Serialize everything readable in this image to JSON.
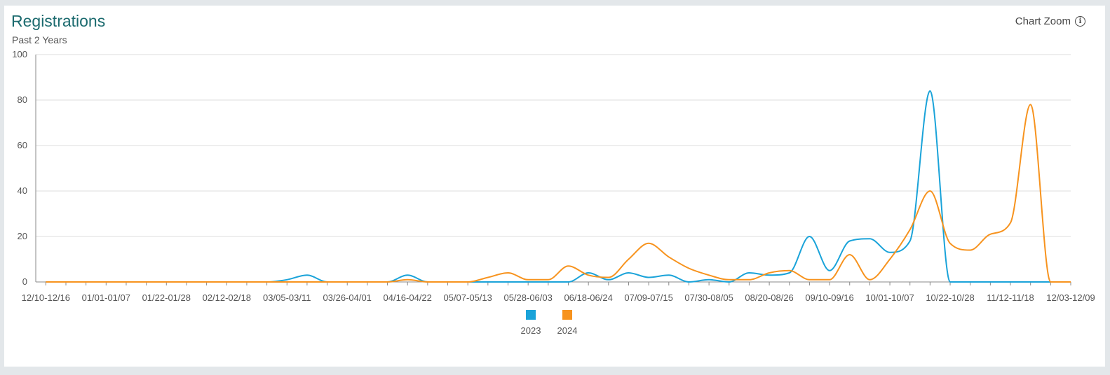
{
  "header": {
    "title": "Registrations",
    "subtitle": "Past 2 Years",
    "zoom_label": "Chart Zoom",
    "zoom_icon": "info-icon"
  },
  "chart_data": {
    "type": "line",
    "smooth": true,
    "title": "Registrations",
    "subtitle": "Past 2 Years",
    "xlabel": "",
    "ylabel": "",
    "ylim": [
      0,
      100
    ],
    "yticks": [
      0,
      20,
      40,
      60,
      80,
      100
    ],
    "grid": true,
    "legend_position": "bottom-center",
    "tick_labels": [
      "12/10-12/16",
      "01/01-01/07",
      "01/22-01/28",
      "02/12-02/18",
      "03/05-03/11",
      "03/26-04/01",
      "04/16-04/22",
      "05/07-05/13",
      "05/28-06/03",
      "06/18-06/24",
      "07/09-07/15",
      "07/30-08/05",
      "08/20-08/26",
      "09/10-09/16",
      "10/01-10/07",
      "10/22-10/28",
      "11/12-11/18",
      "12/03-12/09"
    ],
    "categories": [
      "12/10-12/16",
      "12/17-12/23",
      "12/24-12/30",
      "01/01-01/07",
      "01/08-01/14",
      "01/15-01/21",
      "01/22-01/28",
      "01/29-02/04",
      "02/05-02/11",
      "02/12-02/18",
      "02/19-02/25",
      "02/26-03/04",
      "03/05-03/11",
      "03/12-03/18",
      "03/19-03/25",
      "03/26-04/01",
      "04/02-04/08",
      "04/09-04/15",
      "04/16-04/22",
      "04/23-04/29",
      "04/30-05/06",
      "05/07-05/13",
      "05/14-05/20",
      "05/21-05/27",
      "05/28-06/03",
      "06/04-06/10",
      "06/11-06/17",
      "06/18-06/24",
      "06/25-07/01",
      "07/02-07/08",
      "07/09-07/15",
      "07/16-07/22",
      "07/23-07/29",
      "07/30-08/05",
      "08/06-08/12",
      "08/13-08/19",
      "08/20-08/26",
      "08/27-09/02",
      "09/03-09/09",
      "09/10-09/16",
      "09/17-09/23",
      "09/24-09/30",
      "10/01-10/07",
      "10/08-10/14",
      "10/15-10/21",
      "10/22-10/28",
      "10/29-11/04",
      "11/05-11/11",
      "11/12-11/18",
      "11/19-11/25",
      "11/26-12/02",
      "12/03-12/09"
    ],
    "series": [
      {
        "name": "2023",
        "color": "#1aa3d9",
        "values": [
          0,
          0,
          0,
          0,
          0,
          0,
          0,
          0,
          0,
          0,
          0,
          0,
          1,
          3,
          0,
          0,
          0,
          0,
          3,
          0,
          0,
          0,
          0,
          0,
          0,
          0,
          0,
          4,
          1,
          4,
          2,
          3,
          0,
          1,
          0,
          4,
          3,
          4,
          20,
          5,
          18,
          19,
          13,
          18,
          84,
          0,
          0,
          0,
          0,
          0,
          0,
          0
        ]
      },
      {
        "name": "2024",
        "color": "#f7931e",
        "values": [
          0,
          0,
          0,
          0,
          0,
          0,
          0,
          0,
          0,
          0,
          0,
          0,
          0,
          0,
          0,
          0,
          0,
          0,
          1,
          0,
          0,
          0,
          2,
          4,
          1,
          1,
          7,
          3,
          2,
          10,
          17,
          11,
          6,
          3,
          1,
          1,
          4,
          5,
          1,
          1,
          12,
          1,
          10,
          23,
          40,
          17,
          14,
          21,
          26,
          78,
          0,
          0
        ]
      }
    ]
  }
}
